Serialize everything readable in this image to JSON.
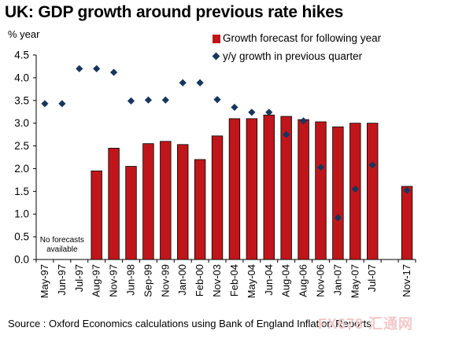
{
  "title": "UK: GDP growth around previous rate hikes",
  "y_unit_label": "% year",
  "source_text": "Source : Oxford Economics calculations using Bank of England Inflation Reports",
  "watermark": "FX678 汇通网",
  "annotation": "No forecasts\navailable",
  "colors": {
    "bar": "#c0161b",
    "marker": "#17365d"
  },
  "chart_data": {
    "type": "bar",
    "title": "UK: GDP growth around previous rate hikes",
    "ylabel": "% year",
    "xlabel": "",
    "ylim": [
      0,
      4.5
    ],
    "yticks": [
      "0.0",
      "0.5",
      "1.0",
      "1.5",
      "2.0",
      "2.5",
      "3.0",
      "3.5",
      "4.0",
      "4.5"
    ],
    "grid": false,
    "legend_position": "top-right",
    "categories": [
      "May-97",
      "Jun-97",
      "Jul-97",
      "Aug-97",
      "Nov-97",
      "Jun-98",
      "Sep-99",
      "Nov-99",
      "Jan-00",
      "Feb-00",
      "Nov-03",
      "Feb-04",
      "May-04",
      "Jun-04",
      "Aug-04",
      "Aug-06",
      "Nov-06",
      "Jan-07",
      "May-07",
      "Jul-07",
      "",
      "Nov-17"
    ],
    "series": [
      {
        "name": "Growth forecast for following year",
        "kind": "bar",
        "values": [
          null,
          null,
          null,
          1.95,
          2.45,
          2.05,
          2.55,
          2.6,
          2.53,
          2.2,
          2.72,
          3.1,
          3.1,
          3.18,
          3.15,
          3.08,
          3.03,
          2.92,
          3.0,
          3.0,
          null,
          1.61
        ]
      },
      {
        "name": "y/y growth in previous quarter",
        "kind": "scatter",
        "values": [
          3.43,
          3.43,
          4.2,
          4.2,
          4.12,
          3.49,
          3.51,
          3.51,
          3.89,
          3.89,
          3.52,
          3.35,
          3.24,
          3.24,
          2.75,
          3.05,
          2.03,
          0.92,
          1.55,
          2.08,
          null,
          1.52
        ]
      }
    ]
  }
}
